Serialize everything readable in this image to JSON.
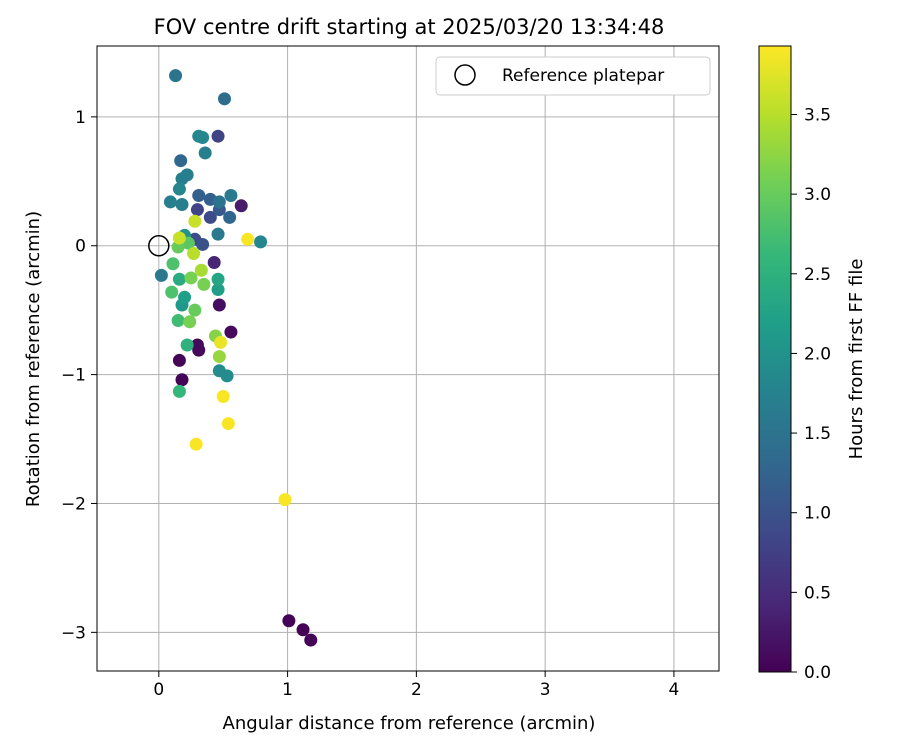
{
  "chart_data": {
    "type": "scatter",
    "title": "FOV centre drift starting at 2025/03/20 13:34:48",
    "xlabel": "Angular distance from reference (arcmin)",
    "ylabel": "Rotation from reference (arcmin)",
    "xlim": [
      -0.48,
      4.35
    ],
    "ylim": [
      -3.3,
      1.55
    ],
    "x_ticks": [
      0,
      1,
      2,
      3,
      4
    ],
    "y_ticks": [
      -3,
      -2,
      -1,
      0,
      1
    ],
    "grid": true,
    "legend": {
      "label": "Reference platepar",
      "position": "top-right",
      "marker": "open-circle"
    },
    "reference_point": {
      "x": 0.0,
      "y": 0.0
    },
    "colorbar": {
      "label": "Hours from first FF file",
      "range": [
        0.0,
        3.93
      ],
      "ticks": [
        "0.0",
        "0.5",
        "1.0",
        "1.5",
        "2.0",
        "2.5",
        "3.0",
        "3.5"
      ],
      "colormap": "viridis"
    },
    "points": [
      {
        "x": 1.01,
        "y": -2.91,
        "c": 0.02
      },
      {
        "x": 1.12,
        "y": -2.98,
        "c": 0.02
      },
      {
        "x": 1.18,
        "y": -3.06,
        "c": 0.02
      },
      {
        "x": 0.16,
        "y": -0.89,
        "c": 0.05
      },
      {
        "x": 0.18,
        "y": -1.04,
        "c": 0.05
      },
      {
        "x": 0.3,
        "y": -0.77,
        "c": 0.1
      },
      {
        "x": 0.31,
        "y": -0.81,
        "c": 0.1
      },
      {
        "x": 0.56,
        "y": -0.67,
        "c": 0.1
      },
      {
        "x": 0.47,
        "y": -0.46,
        "c": 0.15
      },
      {
        "x": 0.64,
        "y": 0.31,
        "c": 0.3
      },
      {
        "x": 0.43,
        "y": -0.13,
        "c": 0.4
      },
      {
        "x": 0.3,
        "y": 0.28,
        "c": 0.8
      },
      {
        "x": 0.46,
        "y": 0.85,
        "c": 0.8
      },
      {
        "x": 0.4,
        "y": 0.22,
        "c": 0.9
      },
      {
        "x": 0.28,
        "y": 0.05,
        "c": 0.9
      },
      {
        "x": 0.34,
        "y": 0.01,
        "c": 1.0
      },
      {
        "x": 0.47,
        "y": 0.28,
        "c": 1.1
      },
      {
        "x": 0.4,
        "y": 0.36,
        "c": 1.2
      },
      {
        "x": 0.31,
        "y": 0.39,
        "c": 1.2
      },
      {
        "x": 0.55,
        "y": 0.22,
        "c": 1.3
      },
      {
        "x": 0.17,
        "y": 0.66,
        "c": 1.3
      },
      {
        "x": 0.51,
        "y": 1.14,
        "c": 1.4
      },
      {
        "x": 0.13,
        "y": 1.32,
        "c": 1.5
      },
      {
        "x": 0.47,
        "y": 0.34,
        "c": 1.5
      },
      {
        "x": 0.56,
        "y": 0.39,
        "c": 1.6
      },
      {
        "x": 0.46,
        "y": 0.09,
        "c": 1.6
      },
      {
        "x": 0.02,
        "y": -0.23,
        "c": 1.6
      },
      {
        "x": 0.18,
        "y": 0.32,
        "c": 1.7
      },
      {
        "x": 0.09,
        "y": 0.34,
        "c": 1.7
      },
      {
        "x": 0.36,
        "y": 0.72,
        "c": 1.7
      },
      {
        "x": 0.18,
        "y": 0.52,
        "c": 1.7
      },
      {
        "x": 0.22,
        "y": 0.55,
        "c": 1.7
      },
      {
        "x": 0.34,
        "y": 0.84,
        "c": 1.8
      },
      {
        "x": 0.31,
        "y": 0.85,
        "c": 1.8
      },
      {
        "x": 0.16,
        "y": 0.44,
        "c": 1.8
      },
      {
        "x": 0.79,
        "y": 0.03,
        "c": 1.8
      },
      {
        "x": 0.53,
        "y": -1.01,
        "c": 1.9
      },
      {
        "x": 0.47,
        "y": -0.97,
        "c": 1.9
      },
      {
        "x": 0.2,
        "y": 0.08,
        "c": 2.0
      },
      {
        "x": 0.18,
        "y": -0.46,
        "c": 2.1
      },
      {
        "x": 0.46,
        "y": -0.34,
        "c": 2.2
      },
      {
        "x": 0.2,
        "y": -0.4,
        "c": 2.2
      },
      {
        "x": 0.46,
        "y": -0.26,
        "c": 2.3
      },
      {
        "x": 0.16,
        "y": -0.26,
        "c": 2.4
      },
      {
        "x": 0.22,
        "y": -0.77,
        "c": 2.5
      },
      {
        "x": 0.16,
        "y": -1.13,
        "c": 2.6
      },
      {
        "x": 0.15,
        "y": -0.58,
        "c": 2.7
      },
      {
        "x": 0.1,
        "y": -0.36,
        "c": 2.8
      },
      {
        "x": 0.11,
        "y": -0.14,
        "c": 2.8
      },
      {
        "x": 0.23,
        "y": 0.02,
        "c": 2.9
      },
      {
        "x": 0.15,
        "y": -0.01,
        "c": 3.0
      },
      {
        "x": 0.28,
        "y": -0.5,
        "c": 3.0
      },
      {
        "x": 0.24,
        "y": -0.59,
        "c": 3.1
      },
      {
        "x": 0.35,
        "y": -0.3,
        "c": 3.1
      },
      {
        "x": 0.25,
        "y": -0.25,
        "c": 3.1
      },
      {
        "x": 0.44,
        "y": -0.7,
        "c": 3.2
      },
      {
        "x": 0.47,
        "y": -0.86,
        "c": 3.3
      },
      {
        "x": 0.33,
        "y": -0.19,
        "c": 3.4
      },
      {
        "x": 0.27,
        "y": -0.06,
        "c": 3.5
      },
      {
        "x": 0.16,
        "y": 0.06,
        "c": 3.6
      },
      {
        "x": 0.28,
        "y": 0.19,
        "c": 3.6
      },
      {
        "x": 0.48,
        "y": -0.75,
        "c": 3.8
      },
      {
        "x": 0.69,
        "y": 0.05,
        "c": 3.9
      },
      {
        "x": 0.5,
        "y": -1.17,
        "c": 3.9
      },
      {
        "x": 0.54,
        "y": -1.38,
        "c": 3.9
      },
      {
        "x": 0.29,
        "y": -1.54,
        "c": 3.9
      },
      {
        "x": 0.98,
        "y": -1.97,
        "c": 3.9
      }
    ]
  }
}
